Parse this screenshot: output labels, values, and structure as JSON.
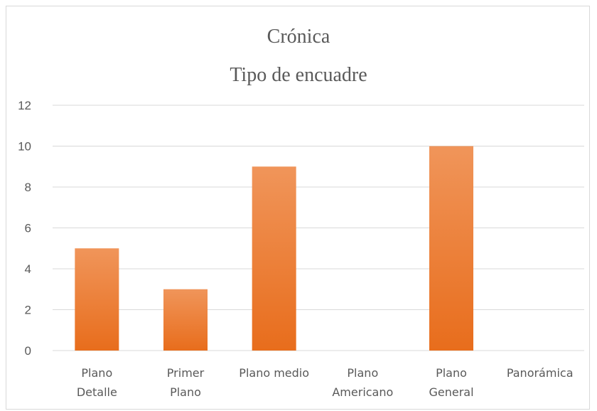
{
  "chart_data": {
    "type": "bar",
    "title": "Crónica",
    "subtitle": "Tipo de encuadre",
    "categories": [
      [
        "Plano",
        "Detalle"
      ],
      [
        "Primer",
        "Plano"
      ],
      [
        "Plano medio"
      ],
      [
        "Plano",
        "Americano"
      ],
      [
        "Plano",
        "General"
      ],
      [
        "Panorámica"
      ]
    ],
    "values": [
      5,
      3,
      9,
      0,
      10,
      0
    ],
    "ylim": [
      0,
      12
    ],
    "yticks": [
      0,
      2,
      4,
      6,
      8,
      10,
      12
    ],
    "grid": true,
    "bar_color_top": "#f0955a",
    "bar_color_bottom": "#e86d1c",
    "grid_color": "#d9d9d9",
    "text_color": "#595959"
  }
}
